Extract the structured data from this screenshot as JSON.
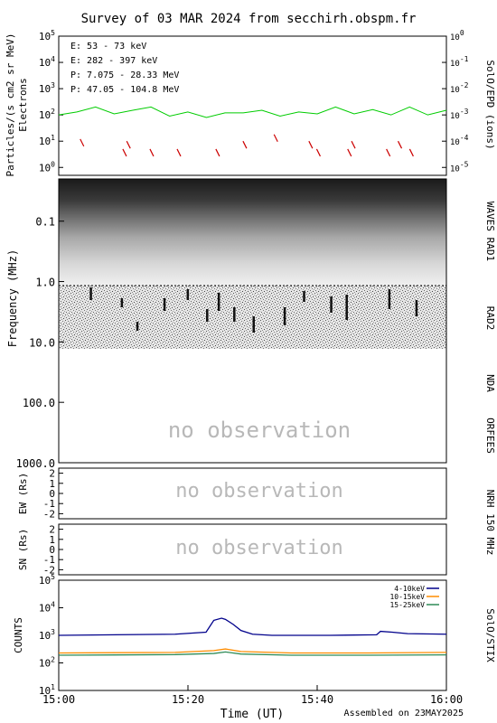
{
  "title": "Survey of 03 MAR 2024 from secchirh.obspm.fr",
  "footer": "Assembled on 23MAY2025",
  "no_observation": "no observation",
  "x_axis": {
    "label": "Time (UT)",
    "ticks": [
      "15:00",
      "15:20",
      "15:40",
      "16:00"
    ]
  },
  "chart_data": [
    {
      "type": "line",
      "name": "particles",
      "ylabel": "Particles/(s cm2 sr MeV)",
      "ylabel2": "Electrons",
      "right_label": "SolO/EPD (ions)",
      "scale": "log",
      "ylim": [
        0.5,
        100000
      ],
      "yticks": [
        "10^0",
        "10^1",
        "10^2",
        "10^3",
        "10^4",
        "10^5"
      ],
      "y2ticks": [
        "10^-5",
        "10^-4",
        "10^-3",
        "10^-2",
        "10^-1",
        "10^0"
      ],
      "legend_placement": "top-left",
      "series": [
        {
          "name": "E: 53 - 73 keV",
          "color": "#00cc00",
          "x": [
            0.0,
            0.047,
            0.095,
            0.143,
            0.191,
            0.238,
            0.286,
            0.333,
            0.381,
            0.429,
            0.476,
            0.524,
            0.571,
            0.619,
            0.667,
            0.714,
            0.762,
            0.81,
            0.857,
            0.905,
            0.952,
            1.0
          ],
          "values": [
            100,
            130,
            200,
            110,
            150,
            200,
            90,
            130,
            80,
            120,
            120,
            150,
            90,
            130,
            110,
            200,
            110,
            160,
            100,
            200,
            100,
            150
          ]
        },
        {
          "name": "E: 282 - 397 keV",
          "color": "#cc0000",
          "x": [
            0.06,
            0.17,
            0.18,
            0.24,
            0.31,
            0.41,
            0.48,
            0.56,
            0.65,
            0.67,
            0.75,
            0.76,
            0.85,
            0.88,
            0.91
          ],
          "values": [
            12,
            5,
            10,
            5,
            5,
            5,
            10,
            18,
            10,
            5,
            5,
            10,
            5,
            10,
            5
          ]
        },
        {
          "name": "P: 7.075 - 28.33 MeV",
          "color": "#000000",
          "x": [],
          "values": []
        },
        {
          "name": "P: 47.05 - 104.8 MeV",
          "color": "#0000cc",
          "x": [],
          "values": []
        }
      ]
    },
    {
      "type": "heatmap",
      "name": "radio",
      "ylabel": "Frequency (MHz)",
      "scale": "log",
      "ylim": [
        0.02,
        1000
      ],
      "yticks": [
        "0.1",
        "1.0",
        "10.0",
        "100.0",
        "1000.0"
      ],
      "bands": [
        "WAVES RAD1",
        "RAD2",
        "NDA",
        "ORFEES"
      ],
      "coverage_mhz": [
        0.02,
        13
      ]
    },
    {
      "type": "line",
      "name": "nrh-ew",
      "ylabel": "EW (Rs)",
      "right_label": "NRH 150 MHz",
      "ylim": [
        -2.5,
        2.5
      ],
      "yticks": [
        "2",
        "1",
        "0",
        "-1",
        "-2"
      ],
      "series": []
    },
    {
      "type": "line",
      "name": "nrh-sn",
      "ylabel": "SN (Rs)",
      "ylim": [
        -2.5,
        2.5
      ],
      "yticks": [
        "2",
        "1",
        "0",
        "-1",
        "-2"
      ],
      "series": []
    },
    {
      "type": "line",
      "name": "stix",
      "ylabel": "COUNTS",
      "right_label": "SolO/STIX",
      "scale": "log",
      "ylim": [
        10,
        100000
      ],
      "yticks": [
        "10^1",
        "10^2",
        "10^3",
        "10^4",
        "10^5"
      ],
      "legend_placement": "top-right",
      "series": [
        {
          "name": "4-10keV",
          "color": "#00008b",
          "x": [
            0.0,
            0.3,
            0.38,
            0.4,
            0.42,
            0.43,
            0.45,
            0.47,
            0.5,
            0.55,
            0.7,
            0.82,
            0.83,
            0.86,
            0.9,
            1.0
          ],
          "values": [
            1000,
            1100,
            1300,
            3500,
            4200,
            3800,
            2500,
            1500,
            1100,
            1000,
            1000,
            1050,
            1400,
            1300,
            1150,
            1100
          ]
        },
        {
          "name": "10-15keV",
          "color": "#ff8c00",
          "x": [
            0.0,
            0.3,
            0.4,
            0.43,
            0.47,
            0.6,
            0.8,
            1.0
          ],
          "values": [
            230,
            240,
            280,
            320,
            260,
            230,
            230,
            240
          ]
        },
        {
          "name": "15-25keV",
          "color": "#2e8b57",
          "x": [
            0.0,
            0.3,
            0.4,
            0.43,
            0.47,
            0.6,
            0.8,
            1.0
          ],
          "values": [
            190,
            200,
            220,
            250,
            210,
            190,
            190,
            195
          ]
        }
      ]
    }
  ]
}
